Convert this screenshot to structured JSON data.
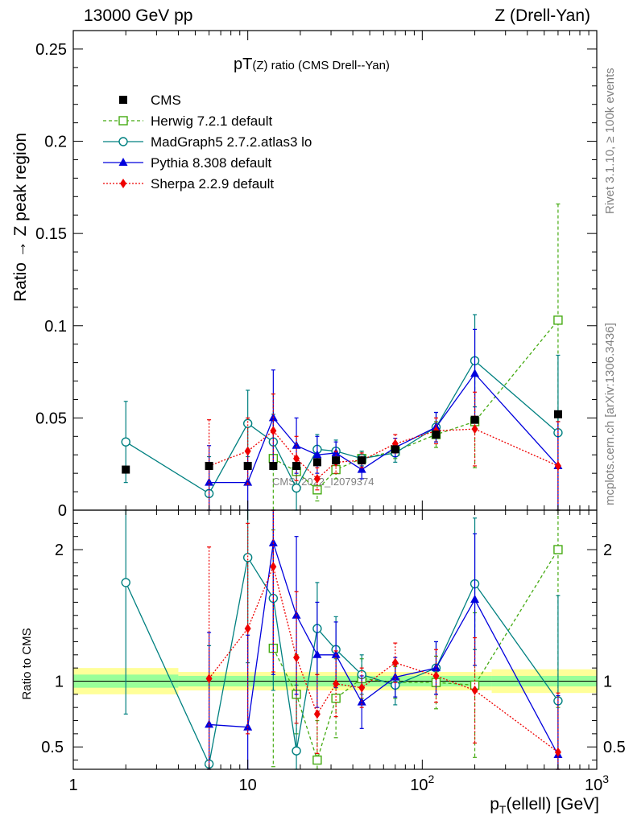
{
  "header": {
    "left": "13000 GeV pp",
    "right": "Z (Drell-Yan)"
  },
  "side": {
    "rivet": "Rivet 3.1.10, ≥ 100k events",
    "mcplots": "mcplots.cern.ch [arXiv:1306.3436]"
  },
  "chart_data": {
    "type": "line",
    "title_main": "pT",
    "title_sub": "(Z) ratio (CMS Drell--Yan)",
    "watermark": "CMS_2022_I2079374",
    "ylabel": "Ratio → Z peak region",
    "ratio_ylabel": "Ratio to CMS",
    "xlabel_main": "p",
    "xlabel_sub": "T",
    "xlabel_rest": "(ellell) [GeV]",
    "x_log": true,
    "xlim": [
      1,
      1000
    ],
    "ylim": [
      0,
      0.26
    ],
    "ratio_ylim": [
      0.33,
      2.3
    ],
    "x_ticks": [
      {
        "v": 1,
        "label": "1",
        "sup": ""
      },
      {
        "v": 10,
        "label": "10",
        "sup": ""
      },
      {
        "v": 100,
        "label": "10",
        "sup": "2"
      },
      {
        "v": 1000,
        "label": "10",
        "sup": "3"
      }
    ],
    "y_ticks": [
      {
        "v": 0,
        "label": "0"
      },
      {
        "v": 0.05,
        "label": "0.05"
      },
      {
        "v": 0.1,
        "label": "0.1"
      },
      {
        "v": 0.15,
        "label": "0.15"
      },
      {
        "v": 0.2,
        "label": "0.2"
      },
      {
        "v": 0.25,
        "label": "0.25"
      }
    ],
    "ratio_ticks": [
      {
        "v": 0.5,
        "label": "0.5"
      },
      {
        "v": 1,
        "label": "1"
      },
      {
        "v": 2,
        "label": "2"
      }
    ],
    "data": {
      "name": "CMS",
      "color": "#000000",
      "x": [
        2,
        6,
        10,
        14,
        19,
        25,
        32,
        45,
        70,
        120,
        200,
        600
      ],
      "y": [
        0.022,
        0.024,
        0.024,
        0.024,
        0.024,
        0.026,
        0.027,
        0.027,
        0.033,
        0.041,
        0.049,
        0.052
      ]
    },
    "data_band": {
      "x_edges": [
        1,
        4,
        4,
        1000
      ],
      "segments": [
        {
          "x0": 1,
          "x1": 4,
          "inner": 0.05,
          "outer": 0.1
        },
        {
          "x0": 4,
          "x1": 250,
          "inner": 0.04,
          "outer": 0.07
        },
        {
          "x0": 250,
          "x1": 1000,
          "inner": 0.04,
          "outer": 0.09
        }
      ],
      "inner_color": "#99ff99",
      "outer_color": "#ffff99"
    },
    "series": [
      {
        "name": "Herwig 7.2.1 default",
        "color": "#44aa11",
        "dash": "4,3",
        "marker": "open-square",
        "x": [
          14,
          19,
          25,
          32,
          45,
          70,
          120,
          200,
          600
        ],
        "y": [
          0.028,
          0.021,
          0.011,
          0.022,
          0.028,
          0.032,
          0.041,
          0.048,
          0.103
        ],
        "err": [
          0.035,
          0.007,
          0.006,
          0.005,
          0.004,
          0.004,
          0.007,
          0.025,
          0.063
        ],
        "ratio": [
          1.25,
          0.9,
          0.4,
          0.87,
          1.02,
          0.99,
          0.99,
          0.97,
          2.0
        ],
        "ratio_err": [
          0.9,
          0.3,
          0.3,
          0.3,
          0.15,
          0.12,
          0.2,
          0.55,
          1.2
        ]
      },
      {
        "name": "MadGraph5 2.7.2.atlas3 lo",
        "color": "#008080",
        "dash": "",
        "marker": "open-circle",
        "x": [
          2,
          6,
          10,
          14,
          19,
          25,
          32,
          45,
          70,
          120,
          200,
          600
        ],
        "y": [
          0.037,
          0.009,
          0.047,
          0.037,
          0.012,
          0.033,
          0.032,
          0.028,
          0.031,
          0.045,
          0.081,
          0.042
        ],
        "err": [
          0.022,
          0.02,
          0.018,
          0.015,
          0.012,
          0.008,
          0.006,
          0.004,
          0.005,
          0.008,
          0.025,
          0.042
        ],
        "ratio": [
          1.75,
          0.37,
          1.94,
          1.63,
          0.47,
          1.4,
          1.24,
          1.05,
          0.97,
          1.1,
          1.74,
          0.85
        ],
        "ratio_err": [
          1.0,
          0.9,
          0.8,
          0.7,
          0.5,
          0.35,
          0.25,
          0.15,
          0.15,
          0.2,
          0.5,
          0.8
        ]
      },
      {
        "name": "Pythia 8.308 default",
        "color": "#0000dd",
        "dash": "",
        "marker": "filled-triangle",
        "x": [
          6,
          10,
          14,
          19,
          25,
          32,
          45,
          70,
          120,
          200,
          600
        ],
        "y": [
          0.015,
          0.015,
          0.05,
          0.035,
          0.03,
          0.031,
          0.022,
          0.034,
          0.045,
          0.074,
          0.024
        ],
        "err": [
          0.02,
          0.018,
          0.026,
          0.015,
          0.01,
          0.006,
          0.005,
          0.005,
          0.008,
          0.024,
          0.024
        ],
        "ratio": [
          0.67,
          0.65,
          2.05,
          1.5,
          1.2,
          1.2,
          0.84,
          1.03,
          1.1,
          1.62,
          0.44
        ],
        "ratio_err": [
          0.7,
          0.7,
          1.0,
          0.6,
          0.4,
          0.25,
          0.2,
          0.15,
          0.2,
          0.5,
          0.45
        ]
      },
      {
        "name": "Sherpa 2.2.9 default",
        "color": "#ee0000",
        "dash": "2,2",
        "marker": "filled-diamond",
        "x": [
          6,
          10,
          14,
          19,
          25,
          32,
          45,
          70,
          120,
          200,
          600
        ],
        "y": [
          0.024,
          0.032,
          0.043,
          0.028,
          0.017,
          0.026,
          0.027,
          0.036,
          0.043,
          0.044,
          0.024
        ],
        "err": [
          0.025,
          0.018,
          0.02,
          0.012,
          0.006,
          0.006,
          0.004,
          0.005,
          0.007,
          0.02,
          0.024
        ],
        "ratio": [
          1.02,
          1.4,
          1.87,
          1.18,
          0.75,
          0.98,
          0.95,
          1.14,
          1.04,
          0.93,
          0.46
        ],
        "ratio_err": [
          1.0,
          0.8,
          0.8,
          0.5,
          0.3,
          0.25,
          0.15,
          0.15,
          0.2,
          0.4,
          0.45
        ]
      }
    ],
    "legend_placement": "top-left",
    "grid": false
  }
}
